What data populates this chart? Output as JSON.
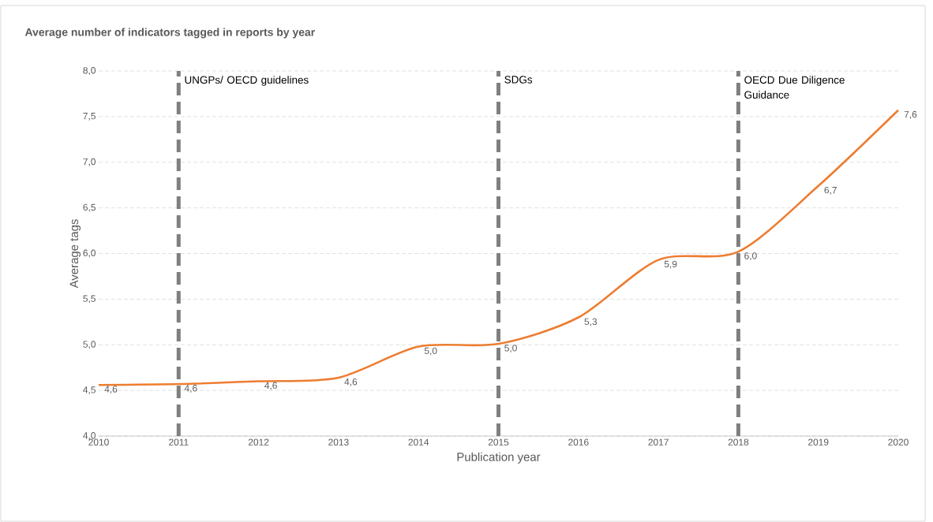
{
  "chart_data": {
    "type": "line",
    "title": "Average number of indicators tagged in reports by year",
    "xlabel": "Publication year",
    "ylabel": "Average tags",
    "x": [
      2010,
      2011,
      2012,
      2013,
      2014,
      2015,
      2016,
      2017,
      2018,
      2019,
      2020
    ],
    "series": [
      {
        "color": "#ed7d31",
        "values": [
          4.56,
          4.57,
          4.6,
          4.64,
          4.98,
          5.01,
          5.3,
          5.93,
          6.02,
          6.74,
          7.57
        ],
        "value_labels": [
          "4,6",
          "4,6",
          "4,6",
          "4,6",
          "5,0",
          "5,0",
          "5,3",
          "5,9",
          "6,0",
          "6,7",
          "7,6"
        ]
      }
    ],
    "xlim": [
      2010,
      2020
    ],
    "xticks": [
      2010,
      2011,
      2012,
      2013,
      2014,
      2015,
      2016,
      2017,
      2018,
      2019,
      2020
    ],
    "ylim": [
      4,
      8
    ],
    "yticks": [
      {
        "value": 4,
        "label": "4,0"
      },
      {
        "value": 4.5,
        "label": "4,5"
      },
      {
        "value": 5,
        "label": "5,0"
      },
      {
        "value": 5.5,
        "label": "5,5"
      },
      {
        "value": 6,
        "label": "6,0"
      },
      {
        "value": 6.5,
        "label": "6,5"
      },
      {
        "value": 7,
        "label": "7,0"
      },
      {
        "value": 7.5,
        "label": "7,5"
      },
      {
        "value": 8,
        "label": "8,0"
      }
    ],
    "grid": "y",
    "marker": "none",
    "line_style": "solid",
    "ref_lines": [
      {
        "axis": "x",
        "value": 2011,
        "label": "UNGPs/ OECD guidelines",
        "color": "#7f7f7f",
        "line_style": "dashed"
      },
      {
        "axis": "x",
        "value": 2015,
        "label": "SDGs",
        "color": "#7f7f7f",
        "line_style": "dashed"
      },
      {
        "axis": "x",
        "value": 2018,
        "label": "OECD Due Diligence Guidance",
        "color": "#7f7f7f",
        "line_style": "dashed"
      }
    ]
  }
}
